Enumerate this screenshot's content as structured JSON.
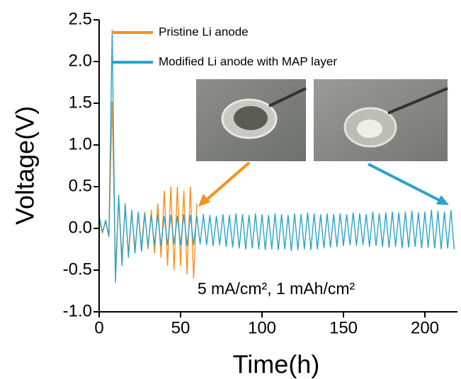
{
  "chart_data": {
    "type": "line",
    "xlabel": "Time(h)",
    "ylabel": "Voltage(V)",
    "annotation": "5 mA/cm², 1 mAh/cm²",
    "xlim": [
      0,
      220
    ],
    "xticks": [
      0,
      50,
      100,
      150,
      200
    ],
    "ylim": [
      -1,
      2.5
    ],
    "yticks": [
      {
        "value": -1,
        "label": "-1.0"
      },
      -0.5,
      {
        "value": 0,
        "label": "0.0"
      },
      0.5,
      {
        "value": 1,
        "label": "1.0"
      },
      1.5,
      {
        "value": 2,
        "label": "2.0"
      },
      2.5
    ],
    "legend": "upper left",
    "series": [
      {
        "name": "Pristine Li anode",
        "color": "#f7901e",
        "x": [
          0,
          2,
          4,
          6,
          8,
          10,
          12,
          14,
          16,
          18,
          20,
          22,
          24,
          26,
          28,
          30,
          32,
          34,
          36,
          38,
          40,
          42,
          44,
          46,
          48,
          50,
          52,
          54,
          56,
          58,
          60
        ],
        "values": [
          0.1,
          -0.05,
          0.08,
          -0.1,
          1.52,
          -0.5,
          0.35,
          -0.35,
          0.25,
          -0.3,
          0.2,
          -0.25,
          0.18,
          -0.22,
          0.2,
          -0.25,
          0.22,
          -0.3,
          0.3,
          -0.35,
          0.45,
          -0.45,
          0.5,
          -0.5,
          0.5,
          -0.45,
          0.45,
          -0.55,
          0.5,
          -0.6,
          0.3
        ]
      },
      {
        "name": "Modified Li anode with MAP layer",
        "color": "#2aa3cc",
        "x": [
          0,
          2,
          4,
          6,
          8,
          10,
          12,
          14,
          16,
          18,
          20,
          22,
          24,
          26,
          28,
          30,
          32,
          34,
          36,
          38,
          40,
          42,
          44,
          46,
          48,
          50,
          52,
          54,
          56,
          58,
          60,
          62,
          64,
          66,
          68,
          70,
          72,
          74,
          76,
          78,
          80,
          82,
          84,
          86,
          88,
          90,
          92,
          94,
          96,
          98,
          100,
          102,
          104,
          106,
          108,
          110,
          112,
          114,
          116,
          118,
          120,
          122,
          124,
          126,
          128,
          130,
          132,
          134,
          136,
          138,
          140,
          142,
          144,
          146,
          148,
          150,
          152,
          154,
          156,
          158,
          160,
          162,
          164,
          166,
          168,
          170,
          172,
          174,
          176,
          178,
          180,
          182,
          184,
          186,
          188,
          190,
          192,
          194,
          196,
          198,
          200,
          202,
          204,
          206,
          208,
          210,
          212,
          214,
          216,
          218
        ],
        "values": [
          0.15,
          -0.05,
          0.1,
          -0.1,
          2.38,
          -0.65,
          0.4,
          -0.45,
          0.3,
          -0.35,
          0.22,
          -0.3,
          0.2,
          -0.28,
          0.18,
          -0.22,
          0.16,
          -0.2,
          0.17,
          -0.21,
          0.15,
          -0.2,
          0.16,
          -0.19,
          0.15,
          -0.2,
          0.17,
          -0.21,
          0.16,
          -0.2,
          0.15,
          -0.19,
          0.17,
          -0.2,
          0.16,
          -0.21,
          0.15,
          -0.2,
          0.17,
          -0.22,
          0.16,
          -0.23,
          0.18,
          -0.24,
          0.17,
          -0.25,
          0.16,
          -0.24,
          0.18,
          -0.25,
          0.17,
          -0.26,
          0.16,
          -0.25,
          0.18,
          -0.26,
          0.17,
          -0.25,
          0.16,
          -0.27,
          0.18,
          -0.26,
          0.17,
          -0.25,
          0.19,
          -0.26,
          0.18,
          -0.25,
          0.17,
          -0.24,
          0.18,
          -0.23,
          0.17,
          -0.22,
          0.18,
          -0.21,
          0.17,
          -0.2,
          0.19,
          -0.21,
          0.18,
          -0.2,
          0.17,
          -0.22,
          0.2,
          -0.21,
          0.18,
          -0.22,
          0.19,
          -0.23,
          0.2,
          -0.22,
          0.19,
          -0.24,
          0.2,
          -0.23,
          0.21,
          -0.22,
          0.19,
          -0.24,
          0.2,
          -0.23,
          0.22,
          -0.24,
          0.21,
          -0.25,
          0.2,
          -0.24,
          0.22,
          -0.25
        ]
      }
    ]
  }
}
